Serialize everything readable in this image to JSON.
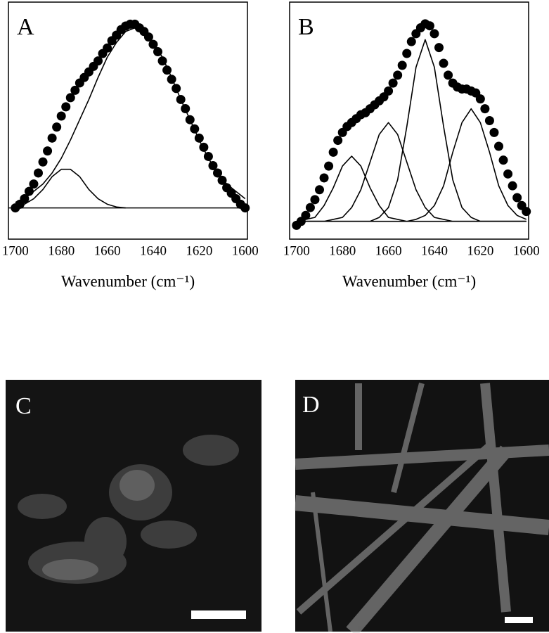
{
  "chart_data": [
    {
      "type": "line",
      "panel_label": "A",
      "x_label": "Wavenumber (cm⁻¹)",
      "xlim": [
        1703,
        1599
      ],
      "xticks": [
        1700,
        1680,
        1660,
        1640,
        1620,
        1600
      ],
      "ylim": [
        -0.17,
        1.12
      ],
      "baseline": 0,
      "series": [
        {
          "marker": "circle",
          "color": "#000000",
          "x": [
            1700,
            1698,
            1696,
            1694,
            1692,
            1690,
            1688,
            1686,
            1684,
            1682,
            1680,
            1678,
            1676,
            1674,
            1672,
            1670,
            1668,
            1666,
            1664,
            1662,
            1660,
            1658,
            1656,
            1654,
            1652,
            1650,
            1648,
            1646,
            1644,
            1642,
            1640,
            1638,
            1636,
            1634,
            1632,
            1630,
            1628,
            1626,
            1624,
            1622,
            1620,
            1618,
            1616,
            1614,
            1612,
            1610,
            1608,
            1606,
            1604,
            1602,
            1600
          ],
          "values": [
            0,
            0.02,
            0.05,
            0.09,
            0.13,
            0.19,
            0.25,
            0.31,
            0.38,
            0.44,
            0.5,
            0.55,
            0.6,
            0.64,
            0.68,
            0.71,
            0.74,
            0.77,
            0.8,
            0.84,
            0.87,
            0.91,
            0.94,
            0.97,
            0.99,
            1.0,
            1.0,
            0.98,
            0.96,
            0.93,
            0.89,
            0.85,
            0.8,
            0.75,
            0.7,
            0.65,
            0.59,
            0.54,
            0.48,
            0.43,
            0.38,
            0.33,
            0.28,
            0.23,
            0.19,
            0.15,
            0.11,
            0.08,
            0.05,
            0.02,
            0
          ]
        },
        {
          "color": "#000000",
          "x": [
            1700,
            1696,
            1692,
            1688,
            1684,
            1680,
            1676,
            1672,
            1668,
            1664,
            1660,
            1656,
            1652
          ],
          "values": [
            0.005,
            0.02,
            0.05,
            0.1,
            0.17,
            0.21,
            0.21,
            0.17,
            0.1,
            0.05,
            0.02,
            0.005,
            0
          ]
        },
        {
          "color": "#000000",
          "x": [
            1700,
            1696,
            1692,
            1688,
            1684,
            1680,
            1676,
            1672,
            1668,
            1664,
            1660,
            1656,
            1652,
            1648,
            1644,
            1640,
            1636,
            1632,
            1628,
            1624,
            1620,
            1616,
            1612,
            1608,
            1604,
            1600
          ],
          "values": [
            0.03,
            0.05,
            0.09,
            0.13,
            0.19,
            0.27,
            0.37,
            0.48,
            0.59,
            0.71,
            0.82,
            0.9,
            0.96,
            0.98,
            0.96,
            0.9,
            0.82,
            0.71,
            0.59,
            0.48,
            0.37,
            0.27,
            0.19,
            0.13,
            0.09,
            0.05
          ]
        }
      ]
    },
    {
      "type": "line",
      "panel_label": "B",
      "x_label": "Wavenumber (cm⁻¹)",
      "xlim": [
        1703,
        1599
      ],
      "xticks": [
        1700,
        1680,
        1660,
        1640,
        1620,
        1600
      ],
      "ylim": [
        -0.09,
        1.11
      ],
      "series": [
        {
          "marker": "circle",
          "color": "#000000",
          "x": [
            1700,
            1698,
            1696,
            1694,
            1692,
            1690,
            1688,
            1686,
            1684,
            1682,
            1680,
            1678,
            1676,
            1674,
            1672,
            1670,
            1668,
            1666,
            1664,
            1662,
            1660,
            1658,
            1656,
            1654,
            1652,
            1650,
            1648,
            1646,
            1644,
            1642,
            1640,
            1638,
            1636,
            1634,
            1632,
            1630,
            1628,
            1626,
            1624,
            1622,
            1620,
            1618,
            1616,
            1614,
            1612,
            1610,
            1608,
            1606,
            1604,
            1602,
            1600
          ],
          "values": [
            -0.02,
            0,
            0.03,
            0.07,
            0.11,
            0.16,
            0.22,
            0.28,
            0.35,
            0.41,
            0.45,
            0.48,
            0.5,
            0.52,
            0.54,
            0.55,
            0.57,
            0.59,
            0.61,
            0.63,
            0.66,
            0.7,
            0.74,
            0.79,
            0.85,
            0.91,
            0.95,
            0.98,
            1.0,
            0.99,
            0.95,
            0.88,
            0.8,
            0.74,
            0.7,
            0.68,
            0.67,
            0.67,
            0.66,
            0.65,
            0.62,
            0.57,
            0.51,
            0.45,
            0.38,
            0.31,
            0.24,
            0.18,
            0.12,
            0.08,
            0.05
          ]
        },
        {
          "color": "#000000",
          "x": [
            1700,
            1696,
            1692,
            1688,
            1684,
            1680,
            1676,
            1672,
            1668,
            1664,
            1660,
            1656,
            1652,
            1648,
            1644,
            1640,
            1636,
            1632,
            1628,
            1624,
            1620,
            1616,
            1612,
            1608,
            1604,
            1600
          ],
          "values": [
            0,
            0.01,
            0.02,
            0.08,
            0.17,
            0.28,
            0.33,
            0.28,
            0.17,
            0.08,
            0.02,
            0.01,
            0,
            0,
            0,
            0,
            0,
            0,
            0,
            0,
            0,
            0,
            0,
            0,
            0,
            0
          ]
        },
        {
          "color": "#000000",
          "x": [
            1700,
            1696,
            1692,
            1688,
            1684,
            1680,
            1676,
            1672,
            1668,
            1664,
            1660,
            1656,
            1652,
            1648,
            1644,
            1640,
            1636,
            1632,
            1628,
            1624,
            1620,
            1616,
            1612,
            1608,
            1604,
            1600
          ],
          "values": [
            0,
            0,
            0,
            0,
            0.01,
            0.02,
            0.07,
            0.16,
            0.3,
            0.44,
            0.5,
            0.44,
            0.3,
            0.16,
            0.07,
            0.02,
            0.01,
            0,
            0,
            0,
            0,
            0,
            0,
            0,
            0,
            0
          ]
        },
        {
          "color": "#000000",
          "x": [
            1700,
            1696,
            1692,
            1688,
            1684,
            1680,
            1676,
            1672,
            1668,
            1664,
            1660,
            1656,
            1652,
            1648,
            1644,
            1640,
            1636,
            1632,
            1628,
            1624,
            1620,
            1616,
            1612,
            1608,
            1604,
            1600
          ],
          "values": [
            0,
            0,
            0,
            0,
            0,
            0,
            0,
            0,
            0,
            0.02,
            0.07,
            0.21,
            0.48,
            0.78,
            0.92,
            0.78,
            0.48,
            0.21,
            0.07,
            0.02,
            0,
            0,
            0,
            0,
            0,
            0
          ]
        },
        {
          "color": "#000000",
          "x": [
            1700,
            1696,
            1692,
            1688,
            1684,
            1680,
            1676,
            1672,
            1668,
            1664,
            1660,
            1656,
            1652,
            1648,
            1644,
            1640,
            1636,
            1632,
            1628,
            1624,
            1620,
            1616,
            1612,
            1608,
            1604,
            1600
          ],
          "values": [
            0,
            0,
            0,
            0,
            0,
            0,
            0,
            0,
            0,
            0,
            0,
            0,
            0,
            0.01,
            0.03,
            0.08,
            0.18,
            0.35,
            0.5,
            0.57,
            0.5,
            0.35,
            0.18,
            0.08,
            0.03,
            0.01
          ]
        }
      ]
    }
  ],
  "images": [
    {
      "panel_label": "C"
    },
    {
      "panel_label": "D"
    }
  ]
}
